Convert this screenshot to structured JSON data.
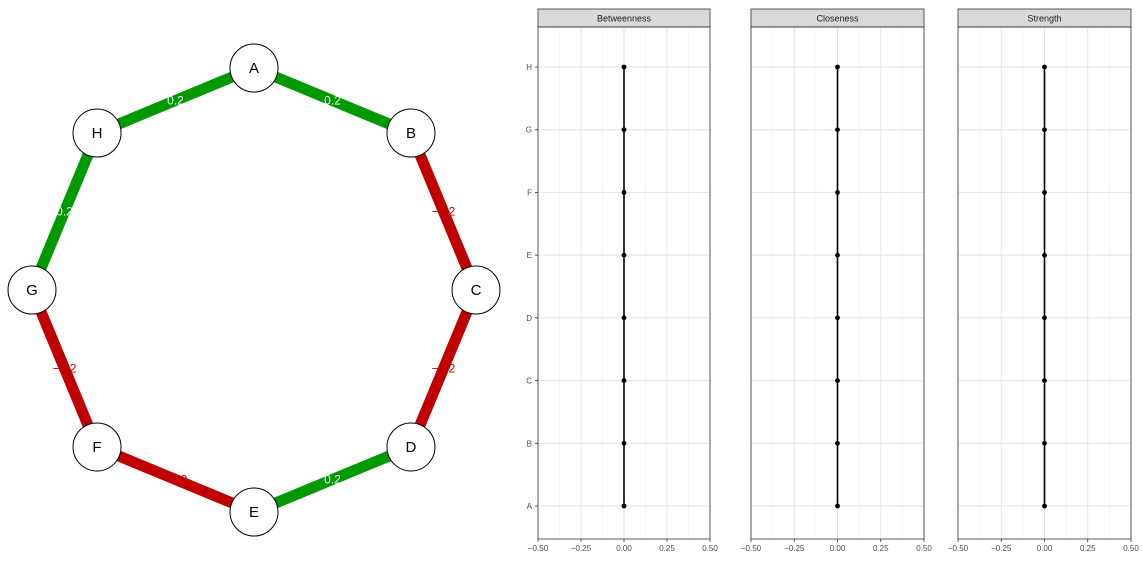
{
  "network": {
    "nodes": [
      "A",
      "B",
      "C",
      "D",
      "E",
      "F",
      "G",
      "H"
    ],
    "edges": [
      {
        "from": "A",
        "to": "B",
        "weight": 0.2,
        "label": "0.2"
      },
      {
        "from": "B",
        "to": "C",
        "weight": -0.2,
        "label": "−0.2"
      },
      {
        "from": "C",
        "to": "D",
        "weight": -0.2,
        "label": "−0.2"
      },
      {
        "from": "D",
        "to": "E",
        "weight": 0.2,
        "label": "0.2"
      },
      {
        "from": "E",
        "to": "F",
        "weight": -0.2,
        "label": "−0.2"
      },
      {
        "from": "F",
        "to": "G",
        "weight": -0.2,
        "label": "−0.2"
      },
      {
        "from": "G",
        "to": "H",
        "weight": 0.2,
        "label": "0.2"
      },
      {
        "from": "H",
        "to": "A",
        "weight": 0.2,
        "label": "0.2"
      }
    ],
    "colors": {
      "positive": "#009900",
      "negative": "#c00000",
      "node_fill": "#ffffff",
      "node_stroke": "#000000"
    }
  },
  "chart_data": [
    {
      "type": "line",
      "title": "Betweenness",
      "categories": [
        "A",
        "B",
        "C",
        "D",
        "E",
        "F",
        "G",
        "H"
      ],
      "values": [
        0,
        0,
        0,
        0,
        0,
        0,
        0,
        0
      ],
      "xlim": [
        -0.5,
        0.5
      ],
      "x_ticks": [
        "−0.50",
        "−0.25",
        "0.00",
        "0.25",
        "0.50"
      ],
      "grid": true
    },
    {
      "type": "line",
      "title": "Closeness",
      "categories": [
        "A",
        "B",
        "C",
        "D",
        "E",
        "F",
        "G",
        "H"
      ],
      "values": [
        0,
        0,
        0,
        0,
        0,
        0,
        0,
        0
      ],
      "xlim": [
        -0.5,
        0.5
      ],
      "x_ticks": [
        "−0.50",
        "−0.25",
        "0.00",
        "0.25",
        "0.50"
      ],
      "grid": true
    },
    {
      "type": "line",
      "title": "Strength",
      "categories": [
        "A",
        "B",
        "C",
        "D",
        "E",
        "F",
        "G",
        "H"
      ],
      "values": [
        0,
        0,
        0,
        0,
        0,
        0,
        0,
        0
      ],
      "xlim": [
        -0.5,
        0.5
      ],
      "x_ticks": [
        "−0.50",
        "−0.25",
        "0.00",
        "0.25",
        "0.50"
      ],
      "grid": true
    }
  ]
}
